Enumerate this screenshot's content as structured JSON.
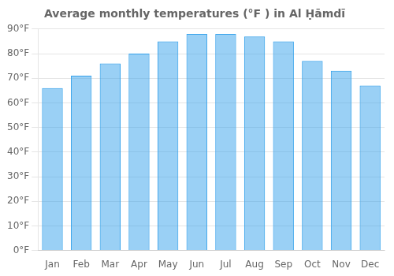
{
  "chart_data": {
    "type": "bar",
    "title": "Average monthly temperatures (°F ) in Al Ḥāmdī",
    "categories": [
      "Jan",
      "Feb",
      "Mar",
      "Apr",
      "May",
      "Jun",
      "Jul",
      "Aug",
      "Sep",
      "Oct",
      "Nov",
      "Dec"
    ],
    "values": [
      66,
      71,
      76,
      80,
      85,
      88,
      88,
      87,
      85,
      77,
      73,
      67
    ],
    "ylim": [
      0,
      90
    ],
    "yticks": [
      {
        "value": 0,
        "label": "0°F"
      },
      {
        "value": 10,
        "label": "10°F"
      },
      {
        "value": 20,
        "label": "20°F"
      },
      {
        "value": 30,
        "label": "30°F"
      },
      {
        "value": 40,
        "label": "40°F"
      },
      {
        "value": 50,
        "label": "50°F"
      },
      {
        "value": 60,
        "label": "60°F"
      },
      {
        "value": 70,
        "label": "70°F"
      },
      {
        "value": 80,
        "label": "80°F"
      },
      {
        "value": 90,
        "label": "90°F"
      }
    ],
    "grid": true
  }
}
